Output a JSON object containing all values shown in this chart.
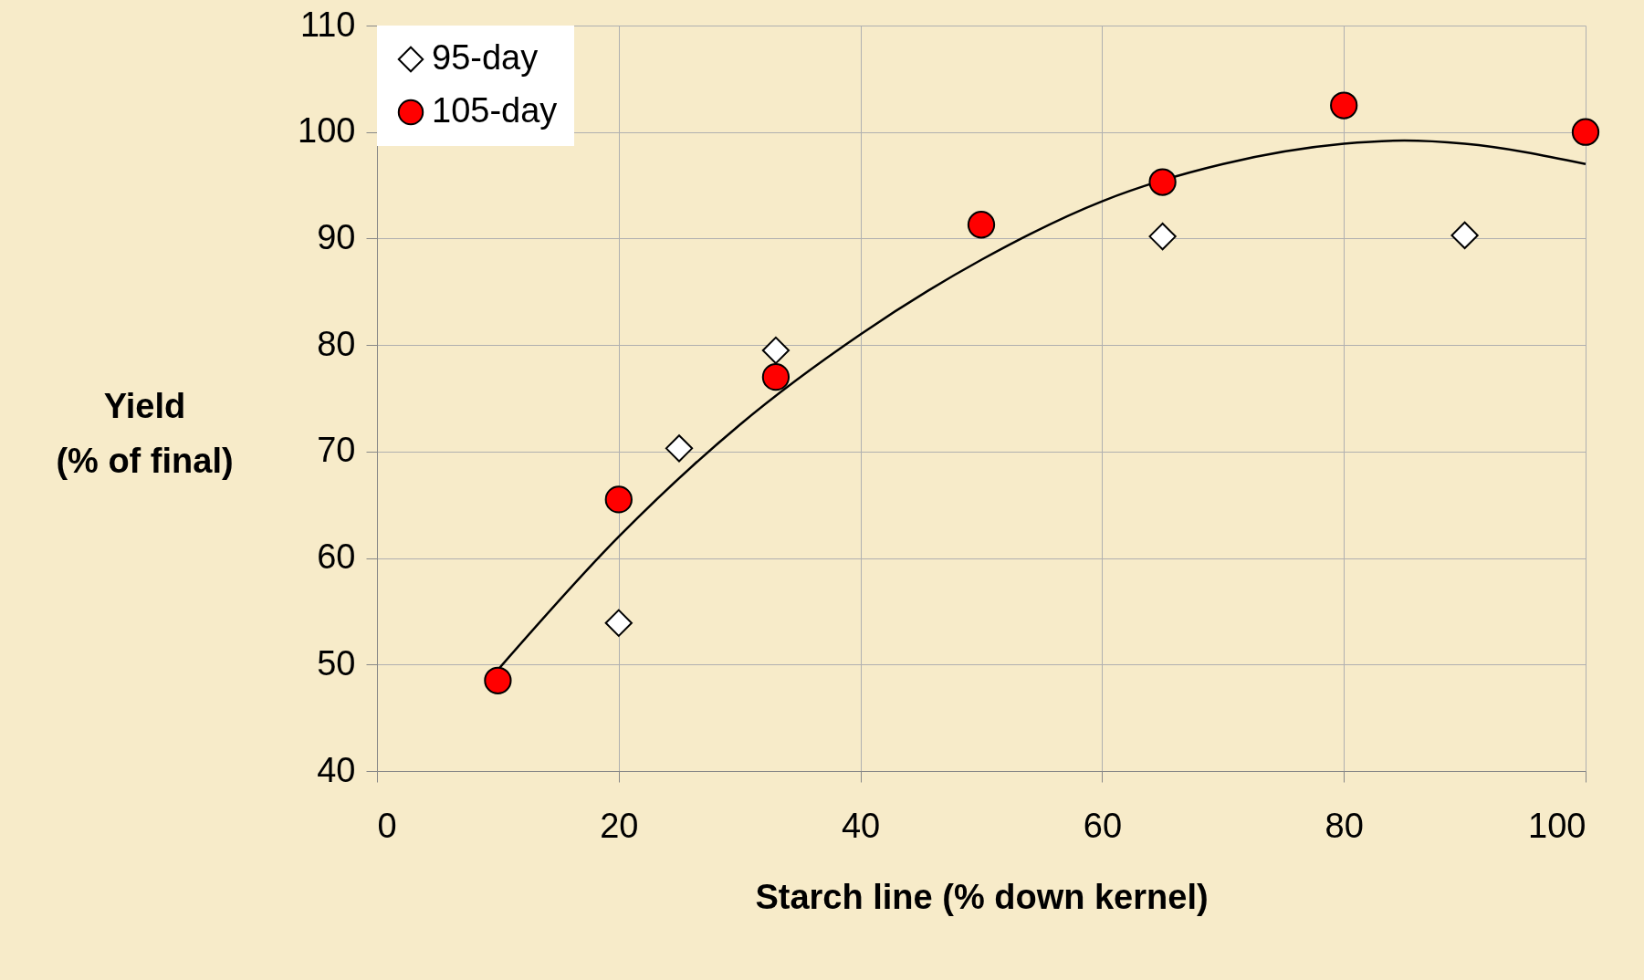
{
  "chart_data": {
    "type": "scatter",
    "xlabel": "Starch line (% down kernel)",
    "ylabel": "Yield (% of final)",
    "xlim": [
      0,
      100
    ],
    "xticks": [
      0,
      20,
      40,
      60,
      80,
      100
    ],
    "ylim": [
      40,
      110
    ],
    "yticks": [
      40,
      50,
      60,
      70,
      80,
      90,
      100,
      110
    ],
    "grid": true,
    "legend": "top left",
    "series": [
      {
        "name": "95-day",
        "color": "#ffffff",
        "marker": "diamond",
        "x": [
          20,
          25,
          33,
          65,
          90
        ],
        "values": [
          53.9,
          70.3,
          79.5,
          90.2,
          90.3
        ]
      },
      {
        "name": "105-day",
        "color": "#ff0000",
        "marker": "circle",
        "x": [
          10,
          20,
          33,
          50,
          65,
          80,
          100
        ],
        "values": [
          48.5,
          65.5,
          77,
          91.3,
          95.3,
          102.5,
          100
        ]
      },
      {
        "type": "line",
        "color": "#000000",
        "marker": "none",
        "x": [
          10,
          20,
          30,
          40,
          50,
          60,
          70,
          80,
          85,
          90,
          100
        ],
        "values": [
          49.5,
          62,
          72.5,
          81,
          88,
          93.5,
          97,
          98.9,
          99.2,
          98.9,
          97
        ]
      }
    ]
  }
}
